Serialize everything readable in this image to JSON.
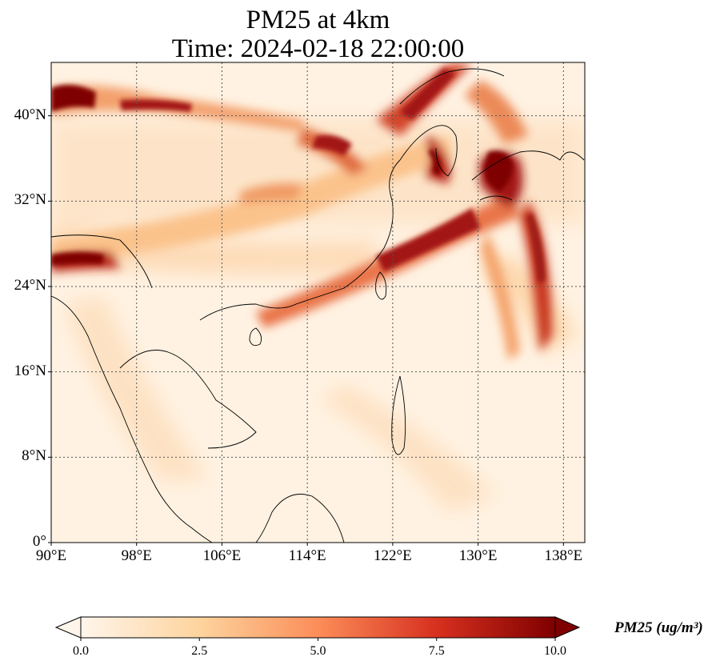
{
  "title": {
    "line1": "PM25 at 4km",
    "line2": "Time: 2024-02-18 22:00:00"
  },
  "map": {
    "lon_range": [
      90,
      140
    ],
    "lat_range": [
      0,
      45
    ],
    "gridlines": true,
    "x_ticks": [
      {
        "lon": 90,
        "label": "90°E"
      },
      {
        "lon": 98,
        "label": "98°E"
      },
      {
        "lon": 106,
        "label": "106°E"
      },
      {
        "lon": 114,
        "label": "114°E"
      },
      {
        "lon": 122,
        "label": "122°E"
      },
      {
        "lon": 130,
        "label": "130°E"
      },
      {
        "lon": 138,
        "label": "138°E"
      }
    ],
    "y_ticks": [
      {
        "lat": 0,
        "label": "0°"
      },
      {
        "lat": 8,
        "label": "8°N"
      },
      {
        "lat": 16,
        "label": "16°N"
      },
      {
        "lat": 24,
        "label": "24°N"
      },
      {
        "lat": 32,
        "label": "32°N"
      },
      {
        "lat": 40,
        "label": "40°N"
      }
    ]
  },
  "colorbar": {
    "label": "PM25 (ug/m³)",
    "ticks": [
      "0.0",
      "2.5",
      "5.0",
      "7.5",
      "10.0"
    ],
    "range": [
      0,
      10
    ],
    "colors": [
      "#fff5eb",
      "#fdd49e",
      "#fc8d59",
      "#d7301f",
      "#7f0000"
    ]
  }
}
